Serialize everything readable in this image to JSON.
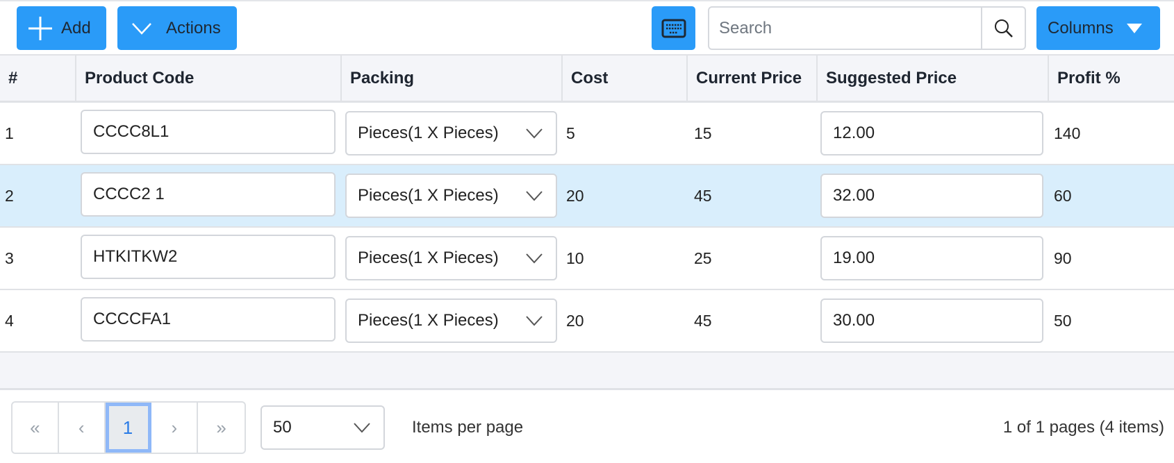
{
  "toolbar": {
    "add_label": "Add",
    "actions_label": "Actions",
    "search_placeholder": "Search",
    "columns_label": "Columns"
  },
  "colors": {
    "accent": "#2a9bf8",
    "selected_row": "#d9eefc",
    "header_bg": "#f4f5f9"
  },
  "columns": [
    "#",
    "Product Code",
    "Packing",
    "Cost",
    "Current Price",
    "Suggested Price",
    "Profit %"
  ],
  "rows": [
    {
      "num": "1",
      "code": "CCCC8L1",
      "packing": "Pieces(1 X Pieces)",
      "cost": "5",
      "current": "15",
      "suggested": "12.00",
      "profit": "140",
      "selected": false
    },
    {
      "num": "2",
      "code": "CCCC2 1",
      "packing": "Pieces(1 X Pieces)",
      "cost": "20",
      "current": "45",
      "suggested": "32.00",
      "profit": "60",
      "selected": true
    },
    {
      "num": "3",
      "code": "HTKITKW2",
      "packing": "Pieces(1 X Pieces)",
      "cost": "10",
      "current": "25",
      "suggested": "19.00",
      "profit": "90",
      "selected": false
    },
    {
      "num": "4",
      "code": "CCCCFA1",
      "packing": "Pieces(1 X Pieces)",
      "cost": "20",
      "current": "45",
      "suggested": "30.00",
      "profit": "50",
      "selected": false
    }
  ],
  "pager": {
    "first": "«",
    "prev": "‹",
    "current": "1",
    "next": "›",
    "last": "»",
    "page_size": "50",
    "items_per_page_label": "Items per page",
    "summary": "1 of 1 pages (4 items)"
  }
}
